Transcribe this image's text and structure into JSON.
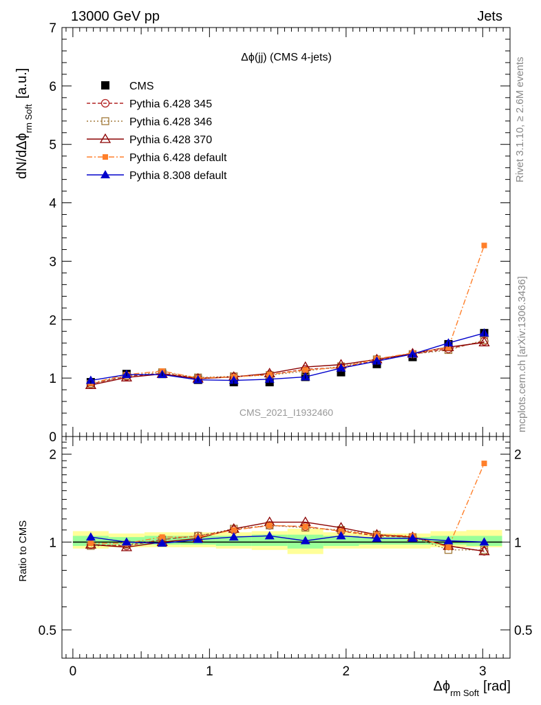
{
  "header": {
    "energy_label": "13000 GeV pp",
    "category_label": "Jets"
  },
  "side_labels": {
    "rivet": "Rivet 3.1.10, ≥ 2.6M events",
    "mcplots": "mcplots.cern.ch [arXiv:1306.3436]"
  },
  "chart_data": [
    {
      "type": "line",
      "title": "Δϕ(jj) (CMS 4-jets)",
      "watermark": "CMS_2021_I1932460",
      "ylabel_main": "dN/dΔϕ",
      "ylabel_sub": "rm Soft",
      "ylabel_unit": "[a.u.]",
      "xlim": [
        -0.08,
        3.2
      ],
      "ylim": [
        0,
        7
      ],
      "y_ticks": [
        "0",
        "1",
        "2",
        "3",
        "4",
        "5",
        "6",
        "7"
      ],
      "x": [
        0.131,
        0.393,
        0.654,
        0.916,
        1.178,
        1.44,
        1.702,
        1.963,
        2.225,
        2.487,
        2.749,
        3.011
      ],
      "legend_position": "top-left",
      "series": [
        {
          "name": "CMS",
          "color": "#000000",
          "marker": "square",
          "line": "none",
          "values": [
            0.93,
            1.07,
            1.07,
            0.97,
            0.93,
            0.93,
            1.02,
            1.1,
            1.24,
            1.36,
            1.58,
            1.77
          ]
        },
        {
          "name": "Pythia 6.428 345",
          "color": "#b22222",
          "marker": "circle-open",
          "line": "dashed",
          "values": [
            0.9,
            1.03,
            1.08,
            1.0,
            1.02,
            1.06,
            1.15,
            1.18,
            1.3,
            1.41,
            1.5,
            1.63
          ]
        },
        {
          "name": "Pythia 6.428 346",
          "color": "#a07838",
          "marker": "square-open",
          "line": "dotted",
          "values": [
            0.9,
            1.04,
            1.1,
            1.01,
            1.03,
            1.05,
            1.12,
            1.2,
            1.32,
            1.41,
            1.48,
            1.65
          ]
        },
        {
          "name": "Pythia 6.428 370",
          "color": "#8b0000",
          "marker": "triangle-open",
          "line": "solid",
          "values": [
            0.88,
            1.01,
            1.07,
            0.99,
            1.02,
            1.08,
            1.19,
            1.23,
            1.32,
            1.42,
            1.53,
            1.61
          ]
        },
        {
          "name": "Pythia 6.428 default",
          "color": "#ff7f2a",
          "marker": "square-small",
          "line": "dashdot",
          "values": [
            0.91,
            1.06,
            1.12,
            1.0,
            1.02,
            1.06,
            1.14,
            1.18,
            1.33,
            1.43,
            1.52,
            3.27
          ]
        },
        {
          "name": "Pythia 8.308 default",
          "color": "#0000cc",
          "marker": "triangle",
          "line": "solid",
          "values": [
            0.96,
            1.06,
            1.06,
            0.97,
            0.96,
            0.98,
            1.02,
            1.17,
            1.29,
            1.41,
            1.6,
            1.77
          ]
        }
      ]
    },
    {
      "type": "line",
      "ylabel": "Ratio to CMS",
      "xlabel_main": "Δϕ",
      "xlabel_sub": "rm Soft",
      "xlabel_unit": "[rad]",
      "y_scale": "log",
      "ylim": [
        0.4,
        2.3
      ],
      "y_tick_values": [
        0.5,
        1,
        2
      ],
      "y_tick_labels": [
        "0.5",
        "1",
        "2"
      ],
      "x_ticks": [
        0,
        1,
        2,
        3
      ],
      "x_tick_labels": [
        "0",
        "1",
        "2",
        "3"
      ],
      "uncertainty_band": {
        "x_edges": [
          0,
          0.262,
          0.524,
          0.785,
          1.047,
          1.309,
          1.571,
          1.833,
          2.094,
          2.356,
          2.618,
          2.88,
          3.142
        ],
        "outer_low": [
          0.95,
          0.96,
          0.96,
          0.96,
          0.95,
          0.94,
          0.91,
          0.95,
          0.95,
          0.95,
          0.96,
          0.96
        ],
        "outer_high": [
          1.09,
          1.07,
          1.08,
          1.08,
          1.08,
          1.09,
          1.11,
          1.08,
          1.07,
          1.07,
          1.09,
          1.1
        ],
        "inner_low": [
          0.97,
          0.98,
          0.98,
          0.98,
          0.97,
          0.97,
          0.95,
          0.97,
          0.98,
          0.98,
          0.98,
          0.97
        ],
        "inner_high": [
          1.05,
          1.04,
          1.05,
          1.05,
          1.05,
          1.06,
          1.06,
          1.05,
          1.04,
          1.04,
          1.05,
          1.05
        ],
        "outer_color": "#ffff99",
        "inner_color": "#99ff99"
      },
      "series": [
        {
          "name": "Pythia 6.428 345",
          "values": [
            0.98,
            0.97,
            1.02,
            1.05,
            1.1,
            1.14,
            1.13,
            1.09,
            1.05,
            1.04,
            0.97,
            0.93
          ]
        },
        {
          "name": "Pythia 6.428 346",
          "values": [
            0.97,
            0.98,
            1.02,
            1.05,
            1.11,
            1.14,
            1.12,
            1.1,
            1.06,
            1.04,
            0.94,
            0.94
          ]
        },
        {
          "name": "Pythia 6.428 370",
          "values": [
            0.98,
            0.96,
            1.0,
            1.03,
            1.11,
            1.17,
            1.17,
            1.12,
            1.06,
            1.04,
            0.97,
            0.93
          ]
        },
        {
          "name": "Pythia 6.428 default",
          "values": [
            0.99,
            0.99,
            1.04,
            1.04,
            1.1,
            1.14,
            1.13,
            1.09,
            1.06,
            1.05,
            0.96,
            1.86
          ]
        },
        {
          "name": "Pythia 8.308 default",
          "values": [
            1.04,
            1.0,
            0.99,
            1.02,
            1.04,
            1.05,
            1.01,
            1.05,
            1.03,
            1.03,
            1.01,
            1.0
          ]
        }
      ]
    }
  ]
}
